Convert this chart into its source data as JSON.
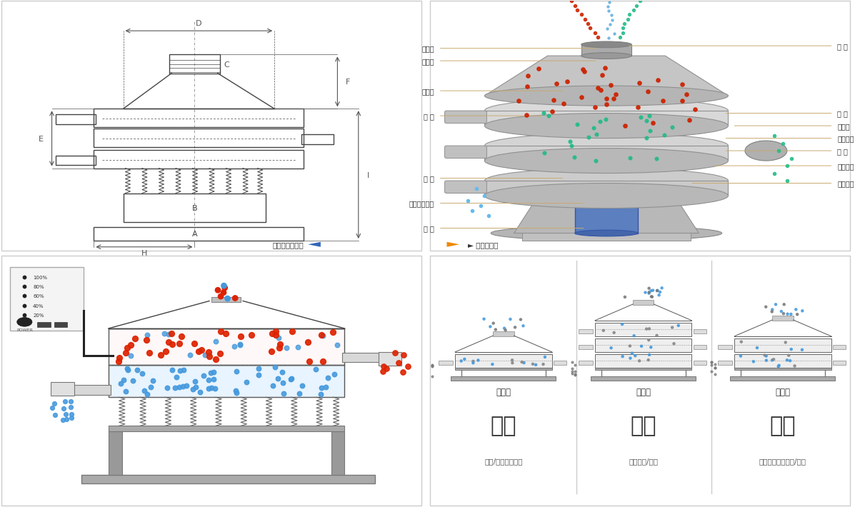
{
  "bg_color": "#ffffff",
  "border_color": "#cccccc",
  "line_color": "#333333",
  "dim_color": "#555555",
  "red_color": "#cc2200",
  "blue_color": "#4488cc",
  "green_color": "#22aa88",
  "cyan_color": "#55aadd",
  "yellow_color": "#ddcc00",
  "title_top_left": "外形尺寸示意图",
  "title_top_right": "结构示意图",
  "labels_left": [
    "进料口",
    "防尘盖",
    "出料口",
    "束 环",
    "弹 簧",
    "运输固定螺栓",
    "机 座"
  ],
  "labels_right": [
    "筛 网",
    "网 架",
    "加重块",
    "上部重锤",
    "筛 盘",
    "振动电机",
    "下部重锤"
  ],
  "bottom_labels": [
    "单层式",
    "三层式",
    "双层式"
  ],
  "bottom_titles": [
    "分级",
    "过滤",
    "除杂"
  ],
  "bottom_subtitles": [
    "颗粒/粉末准确分级",
    "去除异物/结块",
    "去除液体中的颗粒/异物"
  ],
  "control_labels": [
    "100%",
    "80%",
    "60%",
    "40%",
    "20%"
  ],
  "control_title": "POWER"
}
